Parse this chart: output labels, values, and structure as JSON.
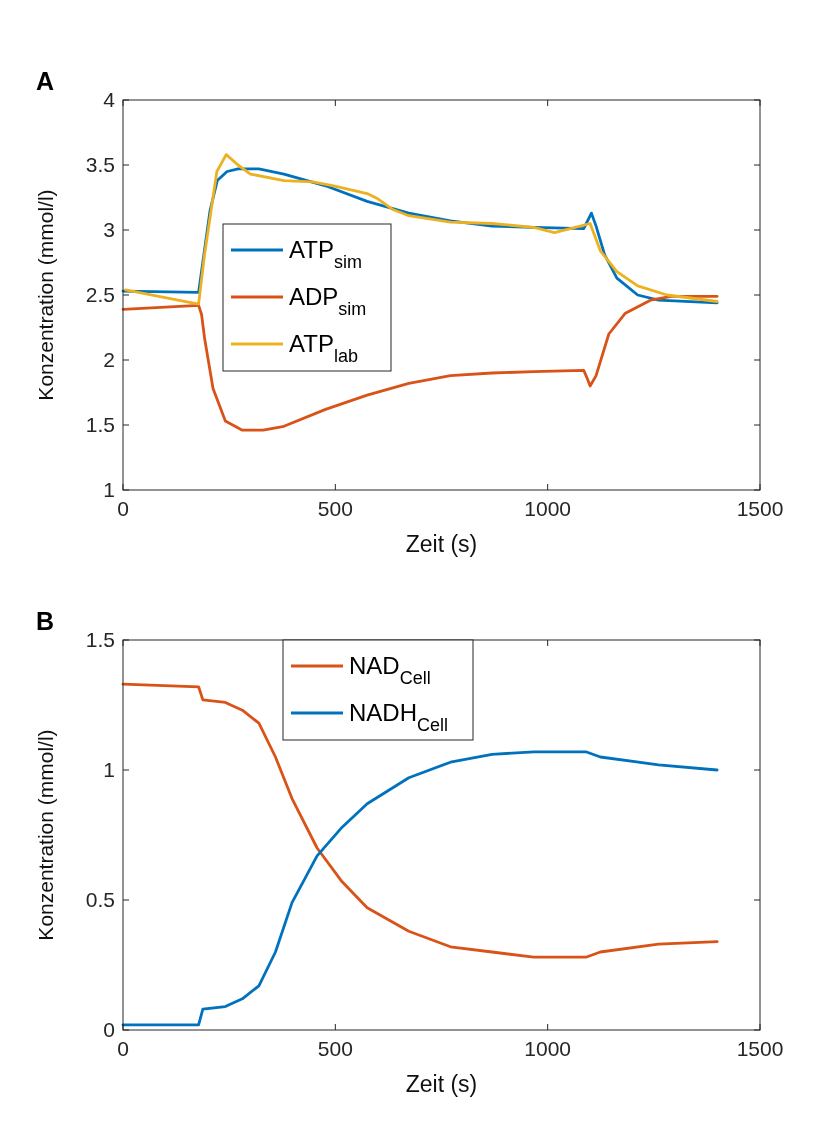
{
  "chart_data": [
    {
      "type": "line",
      "annotations": [
        "A"
      ],
      "xlabel": "Zeit (s)",
      "ylabel": "Konzentration (mmol/l)",
      "xlim": [
        0,
        1500
      ],
      "xticks": [
        0,
        500,
        1000,
        1500
      ],
      "ylim": [
        1,
        4
      ],
      "yticks": [
        1,
        1.5,
        2,
        2.5,
        3,
        3.5,
        4
      ],
      "legend": "left",
      "grid": false,
      "series": [
        {
          "name": "ATP$_{sim}$",
          "color": "#0072bd",
          "x": [
            0,
            178,
            205,
            222,
            245,
            271,
            320,
            379,
            477,
            575,
            673,
            771,
            869,
            967,
            1085,
            1094,
            1103,
            1114,
            1124,
            1134,
            1163,
            1212,
            1261,
            1399
          ],
          "values": [
            2.53,
            2.52,
            3.15,
            3.38,
            3.45,
            3.47,
            3.47,
            3.43,
            3.34,
            3.22,
            3.13,
            3.07,
            3.03,
            3.02,
            3.01,
            3.07,
            3.13,
            3.03,
            2.92,
            2.81,
            2.63,
            2.5,
            2.46,
            2.44
          ]
        },
        {
          "name": "ADP$_{sim}$",
          "color": "#d95319",
          "x": [
            0,
            178,
            185,
            192,
            212,
            241,
            281,
            330,
            379,
            477,
            575,
            673,
            771,
            869,
            967,
            1085,
            1093,
            1100,
            1114,
            1144,
            1183,
            1242,
            1291,
            1399
          ],
          "values": [
            2.39,
            2.42,
            2.35,
            2.17,
            1.78,
            1.53,
            1.46,
            1.46,
            1.49,
            1.62,
            1.73,
            1.82,
            1.88,
            1.9,
            1.91,
            1.92,
            1.86,
            1.8,
            1.88,
            2.2,
            2.36,
            2.46,
            2.49,
            2.49
          ]
        },
        {
          "name": "ATP$_{lab}$",
          "color": "#edb120",
          "x": [
            6,
            84,
            178,
            192,
            221,
            243,
            271,
            300,
            379,
            447,
            496,
            575,
            600,
            634,
            673,
            771,
            869,
            967,
            1016,
            1065,
            1100,
            1124,
            1163,
            1212,
            1281,
            1399
          ],
          "values": [
            2.54,
            2.49,
            2.43,
            2.81,
            3.45,
            3.58,
            3.5,
            3.43,
            3.38,
            3.37,
            3.34,
            3.28,
            3.24,
            3.16,
            3.11,
            3.06,
            3.05,
            3.02,
            2.98,
            3.02,
            3.05,
            2.84,
            2.68,
            2.57,
            2.5,
            2.45
          ]
        }
      ]
    },
    {
      "type": "line",
      "annotations": [
        "B"
      ],
      "xlabel": "Zeit (s)",
      "ylabel": "Konzentration (mmol/l)",
      "xlim": [
        0,
        1500
      ],
      "xticks": [
        0,
        500,
        1000,
        1500
      ],
      "ylim": [
        0,
        1.5
      ],
      "yticks": [
        0,
        0.5,
        1,
        1.5
      ],
      "legend": "top",
      "grid": false,
      "series": [
        {
          "name": "NAD$_{Cell}$",
          "color": "#d95319",
          "x": [
            0,
            178,
            188,
            241,
            281,
            320,
            359,
            398,
            457,
            516,
            575,
            673,
            771,
            869,
            967,
            1090,
            1124,
            1261,
            1399
          ],
          "values": [
            1.33,
            1.32,
            1.27,
            1.26,
            1.23,
            1.18,
            1.05,
            0.89,
            0.7,
            0.57,
            0.47,
            0.38,
            0.32,
            0.3,
            0.28,
            0.28,
            0.3,
            0.33,
            0.34
          ]
        },
        {
          "name": "NADH$_{Cell}$",
          "color": "#0072bd",
          "x": [
            0,
            178,
            188,
            241,
            281,
            320,
            359,
            398,
            457,
            516,
            575,
            673,
            771,
            869,
            967,
            1090,
            1124,
            1261,
            1399
          ],
          "values": [
            0.02,
            0.02,
            0.08,
            0.09,
            0.12,
            0.17,
            0.3,
            0.49,
            0.67,
            0.78,
            0.87,
            0.97,
            1.03,
            1.06,
            1.07,
            1.07,
            1.05,
            1.02,
            1
          ]
        }
      ]
    }
  ]
}
